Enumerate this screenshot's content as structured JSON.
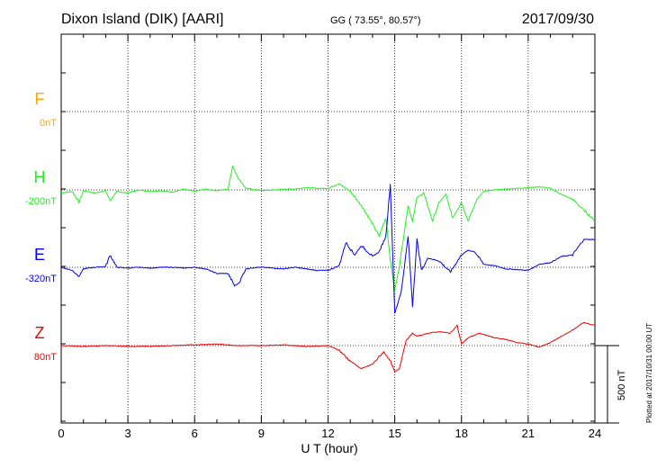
{
  "header": {
    "station": "Dixon Island (DIK)  [AARI]",
    "coords": "GG ( 73.55°,  80.57°)",
    "date": "2017/09/30"
  },
  "footer": {
    "plotted": "Plotted at 2017/10/31 00:00 UT"
  },
  "chart_data": {
    "type": "line",
    "xlabel": "U T (hour)",
    "xlim": [
      0,
      24
    ],
    "xticks": [
      "0",
      "3",
      "6",
      "9",
      "12",
      "15",
      "18",
      "21",
      "24"
    ],
    "scale_bar": {
      "label": "500 nT",
      "nT": 500
    },
    "series": [
      {
        "name": "F",
        "baseline": "0nT",
        "color": "#ffa500",
        "points": []
      },
      {
        "name": "H",
        "baseline": "-200nT",
        "color": "#22ee22",
        "points": [
          [
            0,
            -20
          ],
          [
            0.5,
            -10
          ],
          [
            0.8,
            -80
          ],
          [
            1.0,
            -5
          ],
          [
            1.5,
            -20
          ],
          [
            2.0,
            -5
          ],
          [
            2.2,
            -70
          ],
          [
            2.5,
            -10
          ],
          [
            3.0,
            -20
          ],
          [
            3.5,
            0
          ],
          [
            4.0,
            -10
          ],
          [
            4.5,
            -5
          ],
          [
            5.0,
            -15
          ],
          [
            5.5,
            5
          ],
          [
            6.0,
            -10
          ],
          [
            6.5,
            5
          ],
          [
            7.0,
            -5
          ],
          [
            7.5,
            5
          ],
          [
            7.7,
            150
          ],
          [
            8.0,
            70
          ],
          [
            8.3,
            10
          ],
          [
            8.8,
            0
          ],
          [
            9.0,
            -5
          ],
          [
            9.5,
            0
          ],
          [
            10.0,
            5
          ],
          [
            10.5,
            5
          ],
          [
            11.0,
            15
          ],
          [
            11.5,
            10
          ],
          [
            12.0,
            10
          ],
          [
            12.5,
            40
          ],
          [
            13.0,
            -10
          ],
          [
            13.5,
            -100
          ],
          [
            14.0,
            -220
          ],
          [
            14.3,
            -300
          ],
          [
            14.6,
            -180
          ],
          [
            14.8,
            -450
          ],
          [
            15.0,
            -650
          ],
          [
            15.2,
            -500
          ],
          [
            15.4,
            -300
          ],
          [
            15.6,
            -100
          ],
          [
            15.8,
            -200
          ],
          [
            16.0,
            -50
          ],
          [
            16.3,
            -20
          ],
          [
            16.7,
            -200
          ],
          [
            17.0,
            -80
          ],
          [
            17.3,
            -30
          ],
          [
            17.6,
            -180
          ],
          [
            18.0,
            -80
          ],
          [
            18.3,
            -200
          ],
          [
            18.7,
            -60
          ],
          [
            19.0,
            -10
          ],
          [
            19.5,
            0
          ],
          [
            20.0,
            5
          ],
          [
            20.5,
            10
          ],
          [
            21.0,
            15
          ],
          [
            21.5,
            20
          ],
          [
            22.0,
            10
          ],
          [
            22.5,
            -30
          ],
          [
            23.0,
            -60
          ],
          [
            23.5,
            -130
          ],
          [
            24.0,
            -200
          ]
        ]
      },
      {
        "name": "E",
        "baseline": "-320nT",
        "color": "#0000ee",
        "points": [
          [
            0,
            0
          ],
          [
            0.5,
            -20
          ],
          [
            0.8,
            -60
          ],
          [
            1.0,
            -10
          ],
          [
            1.5,
            0
          ],
          [
            2.0,
            5
          ],
          [
            2.2,
            80
          ],
          [
            2.5,
            0
          ],
          [
            3.0,
            -5
          ],
          [
            3.5,
            0
          ],
          [
            4.0,
            -5
          ],
          [
            4.5,
            0
          ],
          [
            5.0,
            0
          ],
          [
            5.5,
            -5
          ],
          [
            6.0,
            0
          ],
          [
            6.5,
            -10
          ],
          [
            7.0,
            -40
          ],
          [
            7.5,
            -40
          ],
          [
            7.8,
            -120
          ],
          [
            8.0,
            -100
          ],
          [
            8.3,
            -10
          ],
          [
            8.8,
            0
          ],
          [
            9.0,
            0
          ],
          [
            9.5,
            -5
          ],
          [
            10.0,
            -10
          ],
          [
            10.5,
            0
          ],
          [
            11.0,
            -10
          ],
          [
            11.5,
            -20
          ],
          [
            12.0,
            -20
          ],
          [
            12.5,
            10
          ],
          [
            12.8,
            160
          ],
          [
            13.2,
            80
          ],
          [
            13.5,
            140
          ],
          [
            14.0,
            70
          ],
          [
            14.3,
            100
          ],
          [
            14.6,
            200
          ],
          [
            14.8,
            535
          ],
          [
            15.0,
            -300
          ],
          [
            15.3,
            -150
          ],
          [
            15.6,
            200
          ],
          [
            15.8,
            -250
          ],
          [
            16.0,
            180
          ],
          [
            16.2,
            -20
          ],
          [
            16.5,
            60
          ],
          [
            17.0,
            40
          ],
          [
            17.5,
            -30
          ],
          [
            18.0,
            80
          ],
          [
            18.3,
            110
          ],
          [
            18.6,
            100
          ],
          [
            19.0,
            20
          ],
          [
            19.5,
            10
          ],
          [
            20.0,
            -10
          ],
          [
            20.5,
            -15
          ],
          [
            21.0,
            -20
          ],
          [
            21.5,
            20
          ],
          [
            22.0,
            30
          ],
          [
            22.5,
            70
          ],
          [
            23.0,
            80
          ],
          [
            23.5,
            180
          ],
          [
            24.0,
            180
          ]
        ]
      },
      {
        "name": "Z",
        "baseline": "80nT",
        "color": "#ee0000",
        "points": [
          [
            0,
            0
          ],
          [
            1.0,
            -5
          ],
          [
            2.0,
            0
          ],
          [
            3.0,
            -5
          ],
          [
            4.0,
            -5
          ],
          [
            5.0,
            0
          ],
          [
            6.0,
            5
          ],
          [
            7.0,
            10
          ],
          [
            8.0,
            0
          ],
          [
            9.0,
            0
          ],
          [
            10.0,
            5
          ],
          [
            11.0,
            -5
          ],
          [
            12.0,
            0
          ],
          [
            12.5,
            -30
          ],
          [
            13.0,
            -100
          ],
          [
            13.5,
            -150
          ],
          [
            14.0,
            -120
          ],
          [
            14.5,
            -40
          ],
          [
            14.8,
            -100
          ],
          [
            15.0,
            -170
          ],
          [
            15.2,
            -150
          ],
          [
            15.5,
            30
          ],
          [
            15.8,
            80
          ],
          [
            16.0,
            60
          ],
          [
            16.5,
            80
          ],
          [
            17.0,
            90
          ],
          [
            17.5,
            80
          ],
          [
            17.8,
            130
          ],
          [
            18.0,
            10
          ],
          [
            18.3,
            50
          ],
          [
            18.8,
            80
          ],
          [
            19.5,
            50
          ],
          [
            20.0,
            40
          ],
          [
            20.5,
            20
          ],
          [
            21.0,
            10
          ],
          [
            21.5,
            -10
          ],
          [
            22.0,
            20
          ],
          [
            22.5,
            60
          ],
          [
            23.0,
            100
          ],
          [
            23.5,
            150
          ],
          [
            24.0,
            130
          ]
        ]
      }
    ]
  }
}
